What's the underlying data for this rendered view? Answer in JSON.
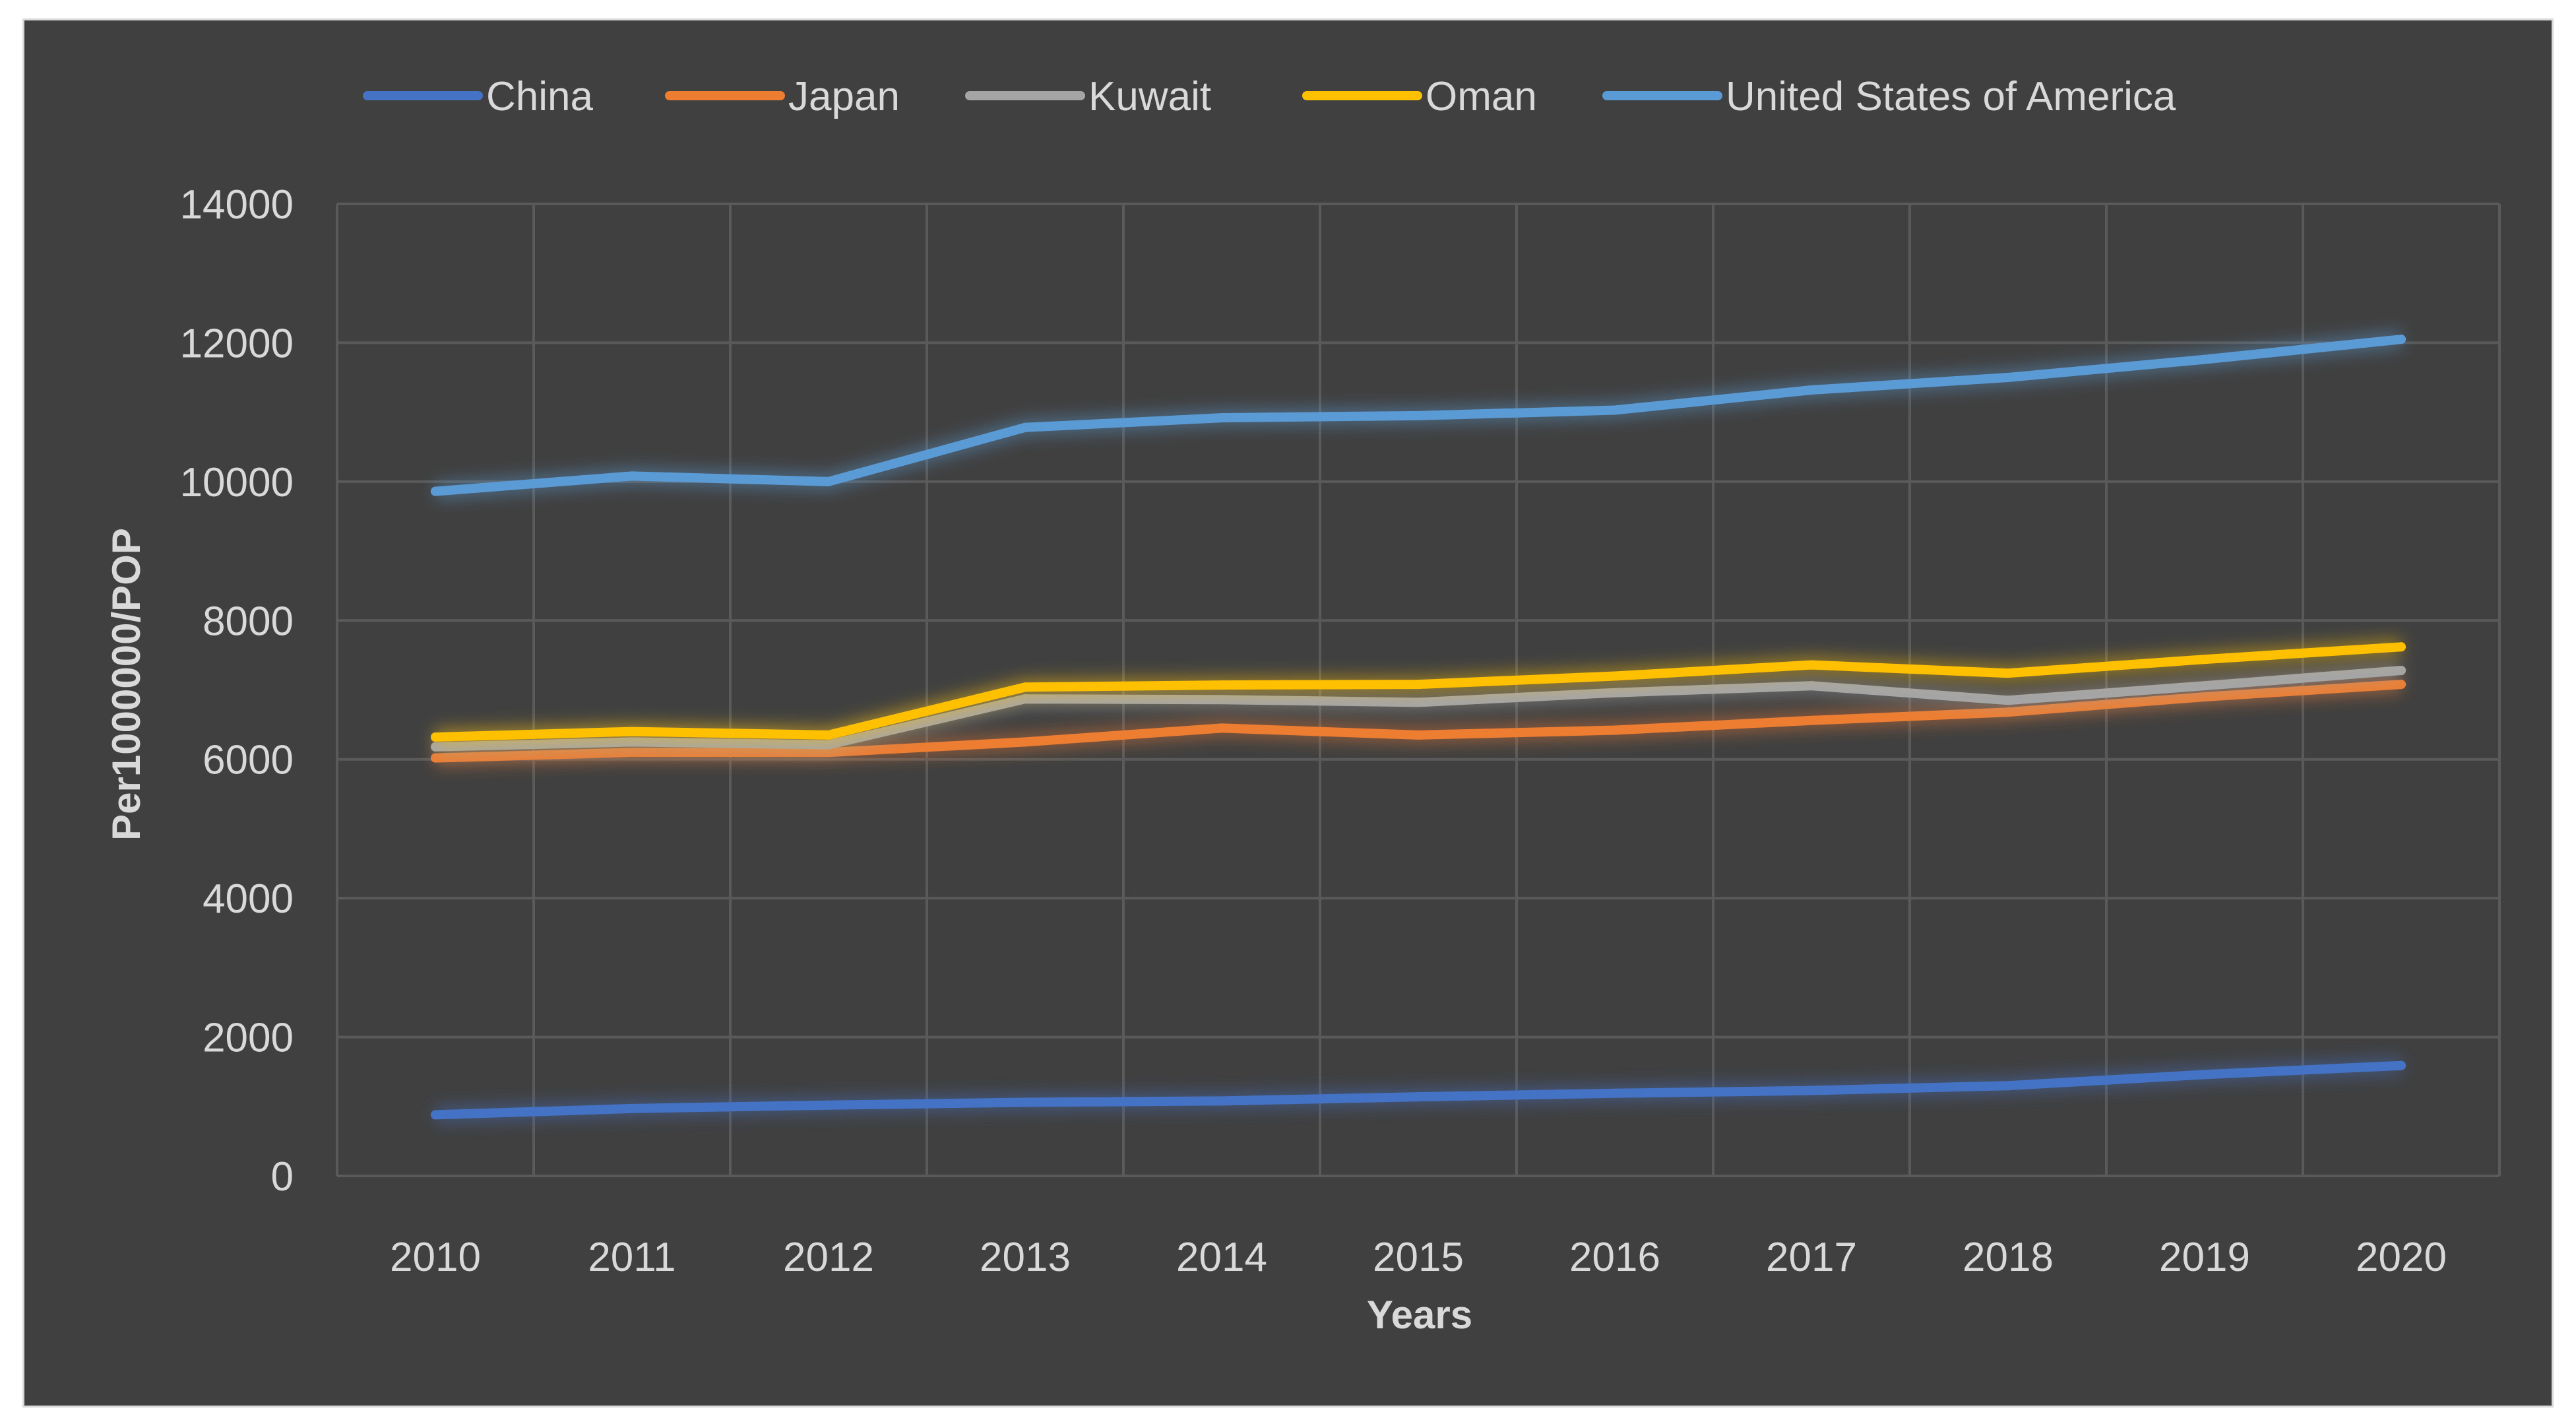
{
  "chart_data": {
    "type": "line",
    "title": "",
    "xlabel": "Years",
    "ylabel": "Per1000000/POP",
    "ylim": [
      0,
      14000
    ],
    "yticks": [
      0,
      2000,
      4000,
      6000,
      8000,
      10000,
      12000,
      14000
    ],
    "grid": true,
    "legend_position": "top",
    "categories": [
      "2010",
      "2011",
      "2012",
      "2013",
      "2014",
      "2015",
      "2016",
      "2017",
      "2018",
      "2019",
      "2020"
    ],
    "series": [
      {
        "name": "China",
        "color": "#4472c4",
        "values": [
          880,
          970,
          1020,
          1060,
          1080,
          1140,
          1190,
          1230,
          1300,
          1460,
          1590
        ]
      },
      {
        "name": "Japan",
        "color": "#ed7d31",
        "values": [
          6020,
          6100,
          6100,
          6250,
          6450,
          6350,
          6420,
          6560,
          6680,
          6900,
          7080
        ]
      },
      {
        "name": "Kuwait",
        "color": "#a5a5a5",
        "values": [
          6180,
          6250,
          6210,
          6870,
          6860,
          6820,
          6960,
          7060,
          6850,
          7060,
          7280
        ]
      },
      {
        "name": "Oman",
        "color": "#ffc000",
        "values": [
          6320,
          6400,
          6350,
          7040,
          7070,
          7080,
          7200,
          7360,
          7240,
          7440,
          7620
        ]
      },
      {
        "name": "United States of America",
        "color": "#5b9bd5",
        "values": [
          9860,
          10080,
          10000,
          10780,
          10920,
          10950,
          11030,
          11320,
          11500,
          11760,
          12050
        ]
      }
    ]
  }
}
